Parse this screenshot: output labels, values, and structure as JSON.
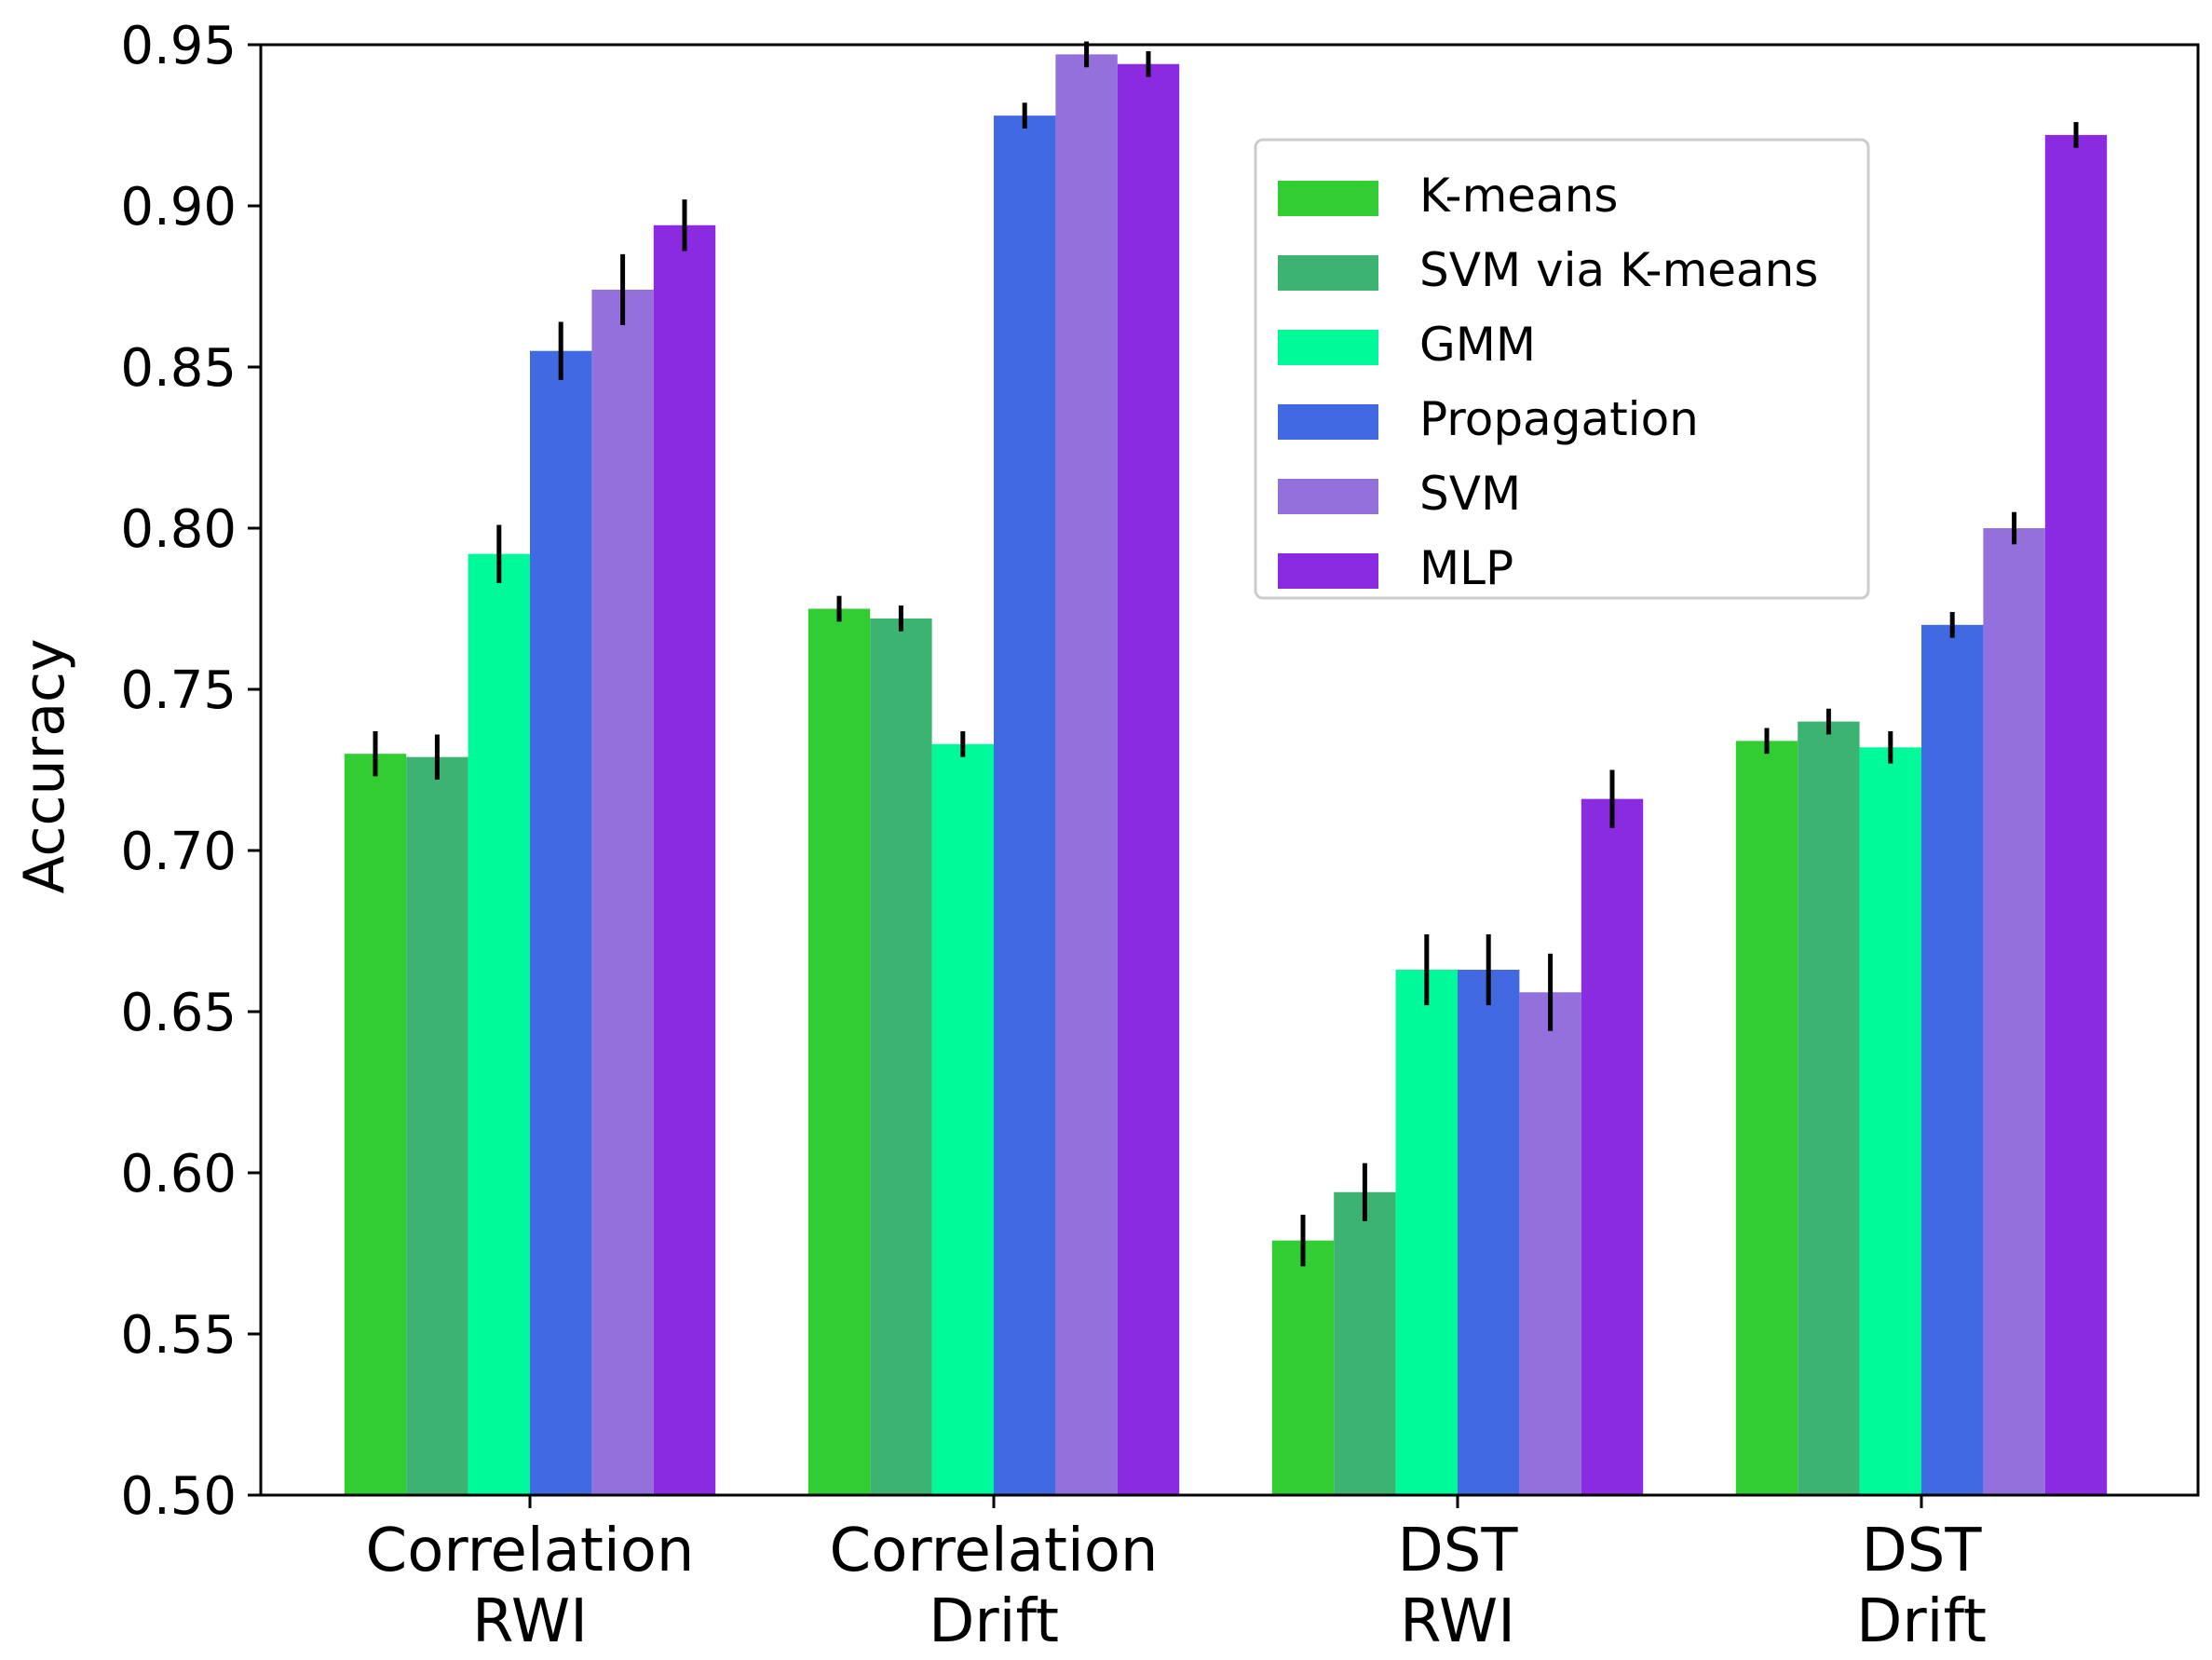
{
  "chart_data": {
    "type": "bar",
    "ylabel": "Accuracy",
    "xlabel": "",
    "ylim": [
      0.5,
      0.95
    ],
    "yticks": [
      "0.50",
      "0.55",
      "0.60",
      "0.65",
      "0.70",
      "0.75",
      "0.80",
      "0.85",
      "0.90",
      "0.95"
    ],
    "categories": [
      [
        "Correlation",
        "RWI"
      ],
      [
        "Correlation",
        "Drift"
      ],
      [
        "DST",
        "RWI"
      ],
      [
        "DST",
        "Drift"
      ]
    ],
    "legend_position": "top-right",
    "grid": false,
    "series": [
      {
        "name": "K-means",
        "color": "#32cd32",
        "values": [
          0.73,
          0.775,
          0.579,
          0.734
        ],
        "errors": [
          0.007,
          0.004,
          0.008,
          0.004
        ]
      },
      {
        "name": "SVM via K-means",
        "color": "#3cb371",
        "values": [
          0.729,
          0.772,
          0.594,
          0.74
        ],
        "errors": [
          0.007,
          0.004,
          0.009,
          0.004
        ]
      },
      {
        "name": "GMM",
        "color": "#00fa9a",
        "values": [
          0.792,
          0.733,
          0.663,
          0.732
        ],
        "errors": [
          0.009,
          0.004,
          0.011,
          0.005
        ]
      },
      {
        "name": "Propagation",
        "color": "#4169e1",
        "values": [
          0.855,
          0.928,
          0.663,
          0.77
        ],
        "errors": [
          0.009,
          0.004,
          0.011,
          0.004
        ]
      },
      {
        "name": "SVM",
        "color": "#9370db",
        "values": [
          0.874,
          0.947,
          0.656,
          0.8
        ],
        "errors": [
          0.011,
          0.004,
          0.012,
          0.005
        ]
      },
      {
        "name": "MLP",
        "color": "#8a2be2",
        "values": [
          0.894,
          0.944,
          0.716,
          0.922
        ],
        "errors": [
          0.008,
          0.004,
          0.009,
          0.004
        ]
      }
    ]
  }
}
